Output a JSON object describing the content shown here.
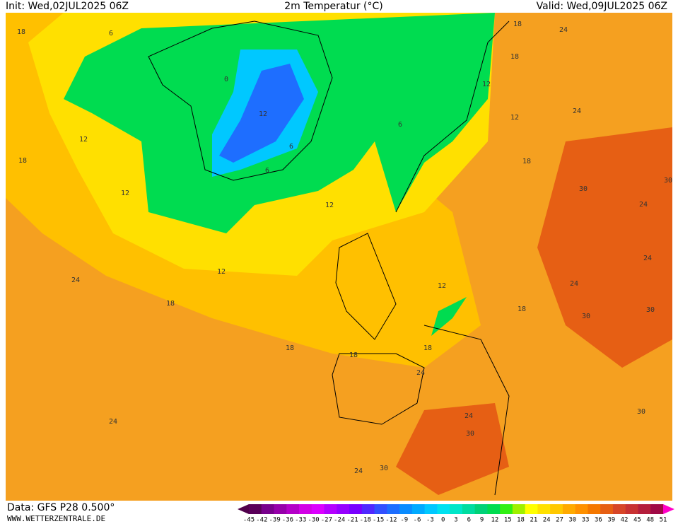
{
  "header": {
    "init": "Init: Wed,02JUL2025 06Z",
    "title": "2m Temperatur (°C)",
    "valid": "Valid: Wed,09JUL2025 06Z"
  },
  "footer": {
    "data": "Data: GFS P28 0.500°",
    "site": "WWW.WETTERZENTRALE.DE"
  },
  "legend": {
    "ticks": [
      -45,
      -42,
      -39,
      -36,
      -33,
      -30,
      -27,
      -24,
      -21,
      -18,
      -15,
      -12,
      -9,
      -6,
      -3,
      0,
      3,
      6,
      9,
      12,
      15,
      18,
      21,
      24,
      27,
      30,
      33,
      36,
      39,
      42,
      45,
      48,
      51
    ],
    "colors": [
      "#5a005a",
      "#78008c",
      "#9600aa",
      "#b400c8",
      "#d200e6",
      "#dc00ff",
      "#b400ff",
      "#9600ff",
      "#7800ff",
      "#5028ff",
      "#3250ff",
      "#1e6eff",
      "#0a8cff",
      "#00aaff",
      "#00c8ff",
      "#00e1f0",
      "#00e6c8",
      "#00dca0",
      "#00d278",
      "#00dc50",
      "#32f014",
      "#a0f000",
      "#ffff00",
      "#ffe100",
      "#ffc800",
      "#ffaa00",
      "#ff9100",
      "#f57800",
      "#e65f14",
      "#d74628",
      "#c83232",
      "#b41e3c",
      "#a00a46"
    ],
    "low_color": "#50004b",
    "high_color": "#ff00c8"
  },
  "contour_labels": [
    18,
    6,
    0,
    12,
    6,
    6,
    6,
    12,
    18,
    12,
    12,
    12,
    24,
    18,
    18,
    18,
    18,
    12,
    24,
    24,
    24,
    30,
    30,
    24,
    30,
    30,
    24,
    24,
    24,
    30,
    30,
    18,
    12,
    12,
    18,
    18,
    24,
    24,
    18,
    30
  ]
}
